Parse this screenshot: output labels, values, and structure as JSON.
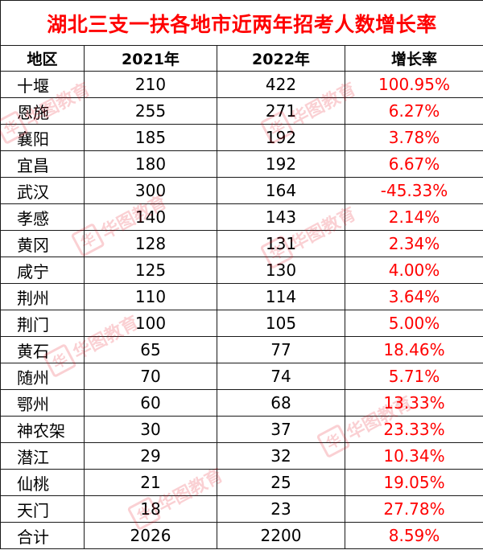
{
  "title": "湖北三支一扶各地市近两年招考人数增长率",
  "headers": {
    "region": "地区",
    "y2021": "2021年",
    "y2022": "2022年",
    "rate": "增长率"
  },
  "rows": [
    {
      "region": "十堰",
      "y2021": "210",
      "y2022": "422",
      "rate": "100.95%"
    },
    {
      "region": "恩施",
      "y2021": "255",
      "y2022": "271",
      "rate": "6.27%"
    },
    {
      "region": "襄阳",
      "y2021": "185",
      "y2022": "192",
      "rate": "3.78%"
    },
    {
      "region": "宜昌",
      "y2021": "180",
      "y2022": "192",
      "rate": "6.67%"
    },
    {
      "region": "武汉",
      "y2021": "300",
      "y2022": "164",
      "rate": "-45.33%"
    },
    {
      "region": "孝感",
      "y2021": "140",
      "y2022": "143",
      "rate": "2.14%"
    },
    {
      "region": "黄冈",
      "y2021": "128",
      "y2022": "131",
      "rate": "2.34%"
    },
    {
      "region": "咸宁",
      "y2021": "125",
      "y2022": "130",
      "rate": "4.00%"
    },
    {
      "region": "荆州",
      "y2021": "110",
      "y2022": "114",
      "rate": "3.64%"
    },
    {
      "region": "荆门",
      "y2021": "100",
      "y2022": "105",
      "rate": "5.00%"
    },
    {
      "region": "黄石",
      "y2021": "65",
      "y2022": "77",
      "rate": "18.46%"
    },
    {
      "region": "随州",
      "y2021": "70",
      "y2022": "74",
      "rate": "5.71%"
    },
    {
      "region": "鄂州",
      "y2021": "60",
      "y2022": "68",
      "rate": "13.33%"
    },
    {
      "region": "神农架",
      "y2021": "30",
      "y2022": "37",
      "rate": "23.33%"
    },
    {
      "region": "潜江",
      "y2021": "29",
      "y2022": "32",
      "rate": "10.34%"
    },
    {
      "region": "仙桃",
      "y2021": "21",
      "y2022": "25",
      "rate": "19.05%"
    },
    {
      "region": "天门",
      "y2021": "18",
      "y2022": "23",
      "rate": "27.78%"
    },
    {
      "region": "合计",
      "y2021": "2026",
      "y2022": "2200",
      "rate": "8.59%"
    }
  ],
  "watermark": {
    "mark": "华",
    "text": "华图教育"
  },
  "colors": {
    "title": "#ff0000",
    "rate": "#ff0000",
    "border": "#1a1a1a",
    "watermark": "#e60012"
  }
}
